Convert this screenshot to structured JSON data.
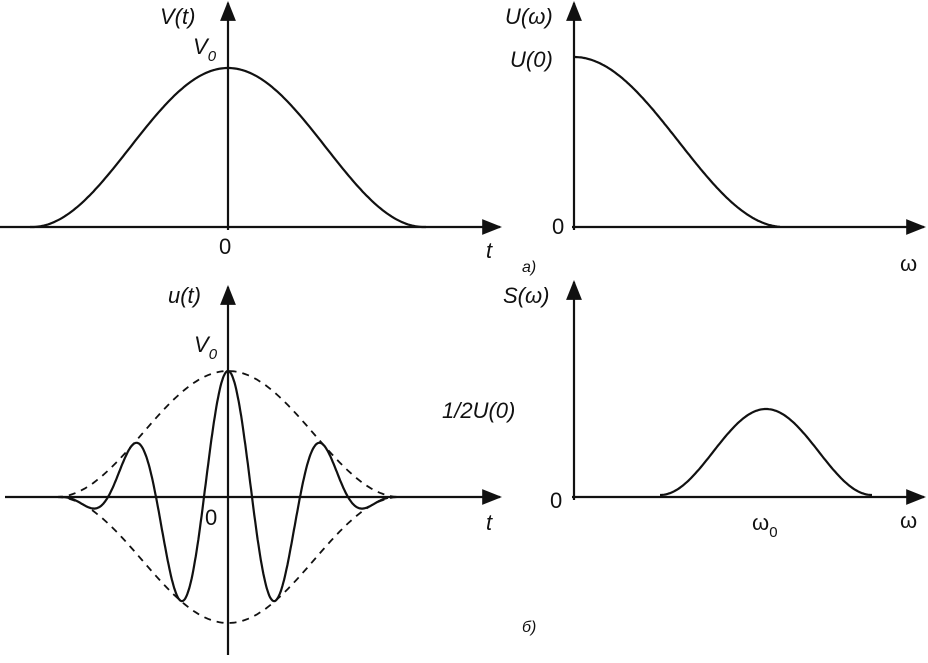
{
  "panel_a": {
    "caption": "a)",
    "left": {
      "y_label": "V(t)",
      "peak_label_base": "V",
      "peak_label_sub": "0",
      "origin_label": "0",
      "x_label": "t"
    },
    "right": {
      "y_label": "U(ω)",
      "peak_label": "U(0)",
      "origin_label": "0",
      "x_label": "ω"
    }
  },
  "panel_b": {
    "caption": "б)",
    "left": {
      "y_label": "u(t)",
      "peak_label_base": "V",
      "peak_label_sub": "0",
      "origin_label": "0",
      "x_label": "t"
    },
    "right": {
      "y_label": "S(ω)",
      "peak_label": "1/2U(0)",
      "origin_label": "0",
      "center_label_base": "ω",
      "center_label_sub": "0",
      "x_label": "ω"
    }
  }
}
